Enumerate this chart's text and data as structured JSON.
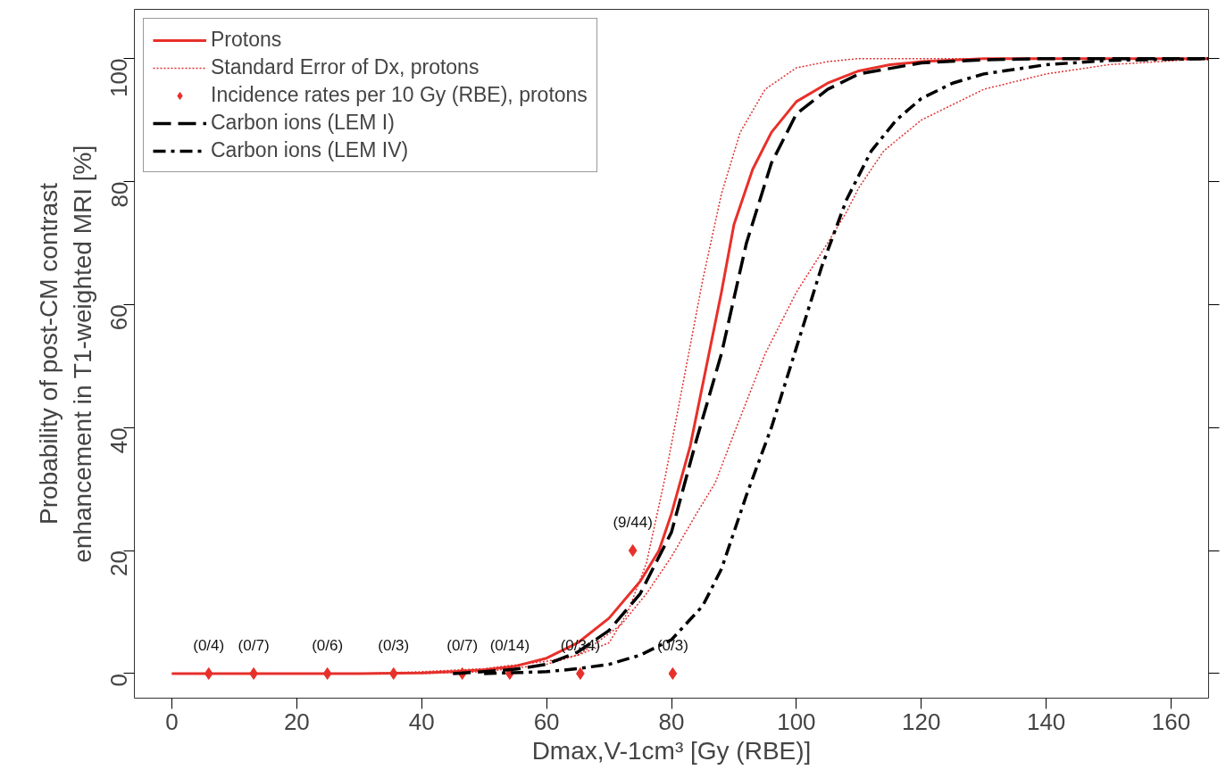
{
  "chart_data": {
    "type": "line",
    "xlabel": "Dmax,V-1cm³ [Gy (RBE)]",
    "ylabel": "Probability of post-CM contrast\nenhancement in T1-weighted MRI [%]",
    "xlim": [
      -6,
      166
    ],
    "ylim": [
      -4,
      108
    ],
    "xticks": [
      0,
      20,
      40,
      60,
      80,
      100,
      120,
      140,
      160
    ],
    "yticks": [
      0,
      20,
      40,
      60,
      80,
      100
    ],
    "grid": false,
    "legend": "top left",
    "series": [
      {
        "name": "Protons",
        "color": "#e8302a",
        "line_style": "solid",
        "x": [
          0,
          10,
          20,
          30,
          40,
          45,
          50,
          55,
          60,
          65,
          70,
          75,
          78,
          80,
          83,
          86,
          88,
          90,
          93,
          96,
          100,
          105,
          110,
          115,
          120,
          130,
          140,
          150,
          166
        ],
        "values": [
          0,
          0,
          0,
          0,
          0.1,
          0.3,
          0.6,
          1.2,
          2.5,
          5,
          9,
          15,
          20,
          26,
          37,
          52,
          62,
          73,
          82,
          88,
          93,
          96,
          98,
          99,
          99.5,
          100,
          100,
          100,
          100
        ]
      },
      {
        "name": "Standard Error of Dx, protons",
        "color": "#e03030",
        "line_style": "dotted",
        "x": [
          0,
          30,
          40,
          50,
          60,
          65,
          70,
          73,
          76,
          79,
          82,
          85,
          88,
          91,
          95,
          100,
          105,
          110,
          120,
          140,
          166
        ],
        "values": [
          0,
          0,
          0.3,
          0.8,
          2,
          3,
          5,
          10,
          18,
          32,
          48,
          64,
          78,
          88,
          95,
          98.5,
          99.5,
          100,
          100,
          100,
          100
        ]
      },
      {
        "color": "#e03030",
        "line_style": "dotted",
        "x": [
          40,
          50,
          60,
          65,
          68,
          72,
          76,
          80,
          84,
          87,
          90,
          95,
          100,
          105,
          108,
          110,
          114,
          120,
          130,
          140,
          150,
          166
        ],
        "values": [
          0,
          0.3,
          1.5,
          3,
          5,
          8,
          13,
          19,
          26,
          31,
          39,
          52,
          62,
          70,
          75,
          79,
          85,
          90,
          95,
          97.5,
          99,
          100
        ]
      },
      {
        "name": "Incidence rates per 10 Gy (RBE), protons",
        "type": "scatter",
        "marker": "diamond",
        "color": "#e8302a",
        "x": [
          5.9,
          13.1,
          24.9,
          35.5,
          46.5,
          54.1,
          65.4,
          73.8,
          80.2
        ],
        "values": [
          0,
          0,
          0,
          0,
          0,
          0,
          0,
          20,
          0
        ]
      },
      {
        "name": "Carbon ions (LEM I)",
        "color": "#000000",
        "line_style": "dashed",
        "x": [
          45,
          50,
          55,
          60,
          65,
          70,
          75,
          80,
          84,
          88,
          92,
          96,
          100,
          105,
          110,
          120,
          130,
          140,
          150,
          166
        ],
        "values": [
          0,
          0.3,
          0.7,
          1.5,
          3.5,
          7,
          13,
          23,
          38,
          52,
          70,
          83,
          91,
          95,
          97.5,
          99.3,
          99.8,
          100,
          100,
          100
        ]
      },
      {
        "name": "Carbon ions (LEM IV)",
        "color": "#000000",
        "line_style": "dashdot",
        "x": [
          50,
          60,
          65,
          70,
          75,
          80,
          85,
          88,
          92,
          96,
          100,
          104,
          108,
          112,
          116,
          120,
          125,
          130,
          140,
          150,
          166
        ],
        "values": [
          0,
          0.3,
          0.8,
          1.5,
          3,
          5.5,
          11,
          17,
          29,
          40,
          53,
          66,
          77,
          85,
          90,
          93.5,
          96,
          97.5,
          99,
          99.7,
          100
        ]
      }
    ],
    "annotations": [
      {
        "text": "(0/4)",
        "x": 5.9,
        "y": 0
      },
      {
        "text": "(0/7)",
        "x": 13.1,
        "y": 0
      },
      {
        "text": "(0/6)",
        "x": 24.9,
        "y": 0
      },
      {
        "text": "(0/3)",
        "x": 35.5,
        "y": 0
      },
      {
        "text": "(0/7)",
        "x": 46.5,
        "y": 0
      },
      {
        "text": "(0/14)",
        "x": 54.1,
        "y": 0
      },
      {
        "text": "(0/34)",
        "x": 65.4,
        "y": 0
      },
      {
        "text": "(9/44)",
        "x": 73.8,
        "y": 20
      },
      {
        "text": "(0/3)",
        "x": 80.2,
        "y": 0
      }
    ]
  }
}
